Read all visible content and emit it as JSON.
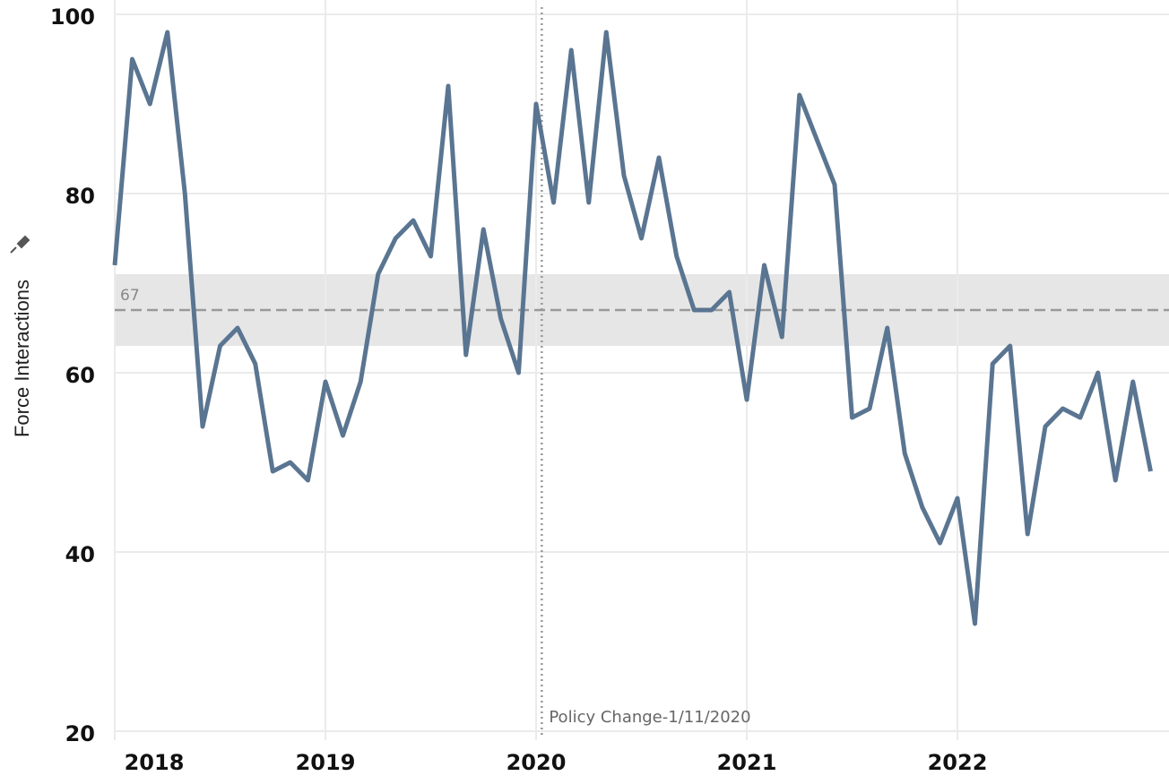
{
  "chart_data": {
    "type": "line",
    "y_label": "Force Interactions",
    "x": [
      2018,
      2018.083,
      2018.167,
      2018.25,
      2018.333,
      2018.417,
      2018.5,
      2018.583,
      2018.667,
      2018.75,
      2018.833,
      2018.917,
      2019,
      2019.083,
      2019.167,
      2019.25,
      2019.333,
      2019.417,
      2019.5,
      2019.583,
      2019.667,
      2019.75,
      2019.833,
      2019.917,
      2020,
      2020.083,
      2020.167,
      2020.25,
      2020.333,
      2020.417,
      2020.5,
      2020.583,
      2020.667,
      2020.75,
      2020.833,
      2020.917,
      2021,
      2021.083,
      2021.167,
      2021.25,
      2021.333,
      2021.417,
      2021.5,
      2021.583,
      2021.667,
      2021.75,
      2021.833,
      2021.917,
      2022,
      2022.083,
      2022.167,
      2022.25,
      2022.333,
      2022.417,
      2022.5,
      2022.583,
      2022.667,
      2022.75,
      2022.833,
      2022.917
    ],
    "series": [
      {
        "name": "Force Interactions",
        "color": "#5a7591",
        "values": [
          72,
          95,
          90,
          98,
          80,
          54,
          63,
          65,
          61,
          49,
          50,
          48,
          59,
          53,
          59,
          71,
          75,
          77,
          73,
          92,
          62,
          76,
          66,
          60,
          90,
          79,
          96,
          79,
          98,
          82,
          75,
          84,
          73,
          67,
          67,
          69,
          57,
          72,
          64,
          91,
          86,
          81,
          55,
          56,
          65,
          51,
          45,
          41,
          46,
          32,
          61,
          63,
          42,
          54,
          56,
          55,
          60,
          48,
          59,
          49
        ]
      }
    ],
    "xlim": [
      2018,
      2023
    ],
    "xticks": [
      2018,
      2019,
      2020,
      2021,
      2022
    ],
    "ylim": [
      20,
      100
    ],
    "yticks": [
      20,
      40,
      60,
      80,
      100
    ],
    "grid": true,
    "reference_line": 67,
    "reference_band": [
      63,
      71
    ],
    "annotation": {
      "x": 2020.027,
      "label": "Policy Change-1/11/2020"
    }
  }
}
